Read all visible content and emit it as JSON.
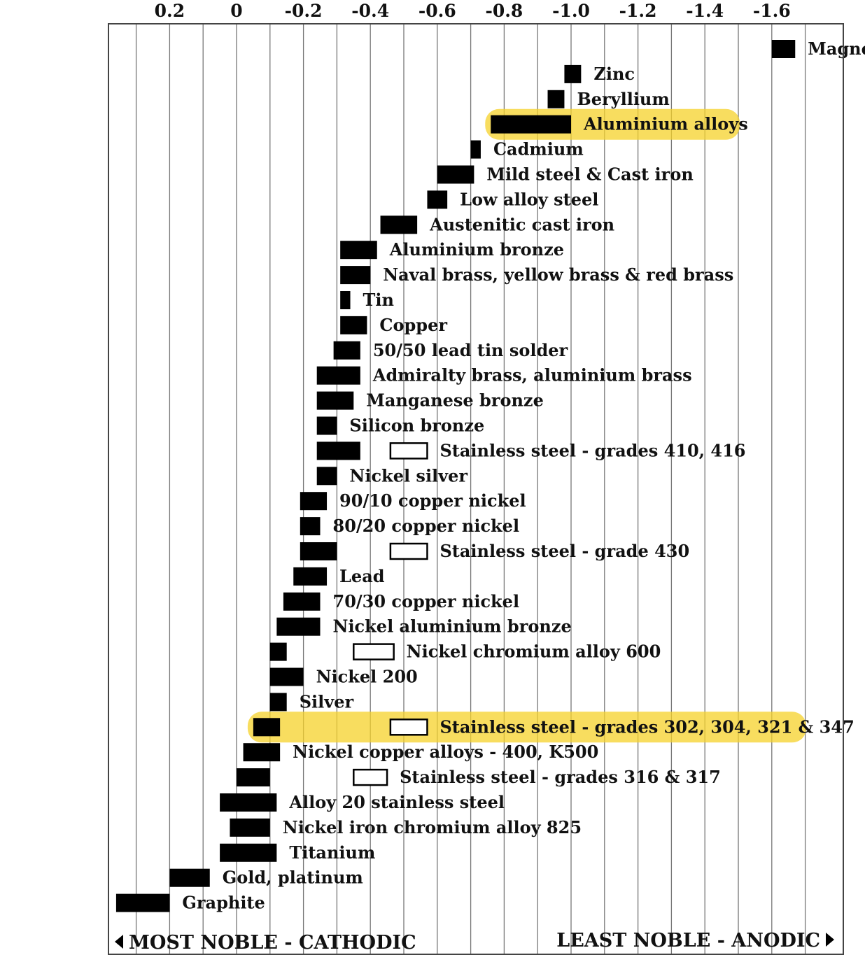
{
  "chart_data": {
    "type": "bar",
    "x_ticks": [
      "0.2",
      "0",
      "-0.2",
      "-0.4",
      "-0.6",
      "-0.8",
      "-1.0",
      "-1.2",
      "-1.4",
      "-1.6"
    ],
    "x_tick_values": [
      0.2,
      0,
      -0.2,
      -0.4,
      -0.6,
      -0.8,
      -1.0,
      -1.2,
      -1.4,
      -1.6
    ],
    "xlim": [
      0.4,
      -1.8
    ],
    "grid": true,
    "footer_left": "MOST NOBLE - CATHODIC",
    "footer_right": "LEAST NOBLE - ANODIC",
    "highlight_color": "#f6d22a",
    "series": [
      {
        "label": "Magnesium",
        "range": [
          -1.6,
          -1.67
        ]
      },
      {
        "label": "Zinc",
        "range": [
          -0.98,
          -1.03
        ]
      },
      {
        "label": "Beryllium",
        "range": [
          -0.93,
          -0.98
        ]
      },
      {
        "label": "Aluminium alloys",
        "range": [
          -0.76,
          -1.0
        ],
        "highlight": true
      },
      {
        "label": "Cadmium",
        "range": [
          -0.7,
          -0.73
        ]
      },
      {
        "label": "Mild steel & Cast iron",
        "range": [
          -0.6,
          -0.71
        ]
      },
      {
        "label": "Low alloy steel",
        "range": [
          -0.57,
          -0.63
        ]
      },
      {
        "label": "Austenitic cast iron",
        "range": [
          -0.43,
          -0.54
        ]
      },
      {
        "label": "Aluminium bronze",
        "range": [
          -0.31,
          -0.42
        ]
      },
      {
        "label": "Naval brass, yellow brass & red brass",
        "range": [
          -0.31,
          -0.4
        ]
      },
      {
        "label": "Tin",
        "range": [
          -0.31,
          -0.34
        ]
      },
      {
        "label": "Copper",
        "range": [
          -0.31,
          -0.39
        ]
      },
      {
        "label": "50/50 lead tin solder",
        "range": [
          -0.29,
          -0.37
        ]
      },
      {
        "label": "Admiralty brass, aluminium brass",
        "range": [
          -0.24,
          -0.37
        ]
      },
      {
        "label": "Manganese bronze",
        "range": [
          -0.24,
          -0.35
        ]
      },
      {
        "label": "Silicon bronze",
        "range": [
          -0.24,
          -0.3
        ]
      },
      {
        "label": "Stainless steel   - grades 410, 416",
        "range": [
          -0.24,
          -0.37
        ],
        "passive_range": [
          -0.46,
          -0.57
        ]
      },
      {
        "label": "Nickel silver",
        "range": [
          -0.24,
          -0.3
        ]
      },
      {
        "label": "90/10 copper nickel",
        "range": [
          -0.19,
          -0.27
        ]
      },
      {
        "label": "80/20 copper nickel",
        "range": [
          -0.19,
          -0.25
        ]
      },
      {
        "label": "Stainless steel   - grade 430",
        "range": [
          -0.19,
          -0.3
        ],
        "passive_range": [
          -0.46,
          -0.57
        ]
      },
      {
        "label": "Lead",
        "range": [
          -0.17,
          -0.27
        ]
      },
      {
        "label": "70/30 copper nickel",
        "range": [
          -0.14,
          -0.25
        ]
      },
      {
        "label": "Nickel aluminium bronze",
        "range": [
          -0.12,
          -0.25
        ]
      },
      {
        "label": "Nickel chromium alloy 600",
        "range": [
          -0.1,
          -0.15
        ],
        "passive_range": [
          -0.35,
          -0.47
        ]
      },
      {
        "label": "Nickel 200",
        "range": [
          -0.1,
          -0.2
        ]
      },
      {
        "label": "Silver",
        "range": [
          -0.1,
          -0.15
        ]
      },
      {
        "label": "Stainless steel - grades 302, 304, 321 & 347",
        "range": [
          -0.05,
          -0.13
        ],
        "passive_range": [
          -0.46,
          -0.57
        ],
        "highlight": true
      },
      {
        "label": "Nickel copper  alloys - 400, K500",
        "range": [
          -0.02,
          -0.13
        ]
      },
      {
        "label": "Stainless steel -  grades  316 & 317",
        "range": [
          0,
          -0.1
        ],
        "passive_range": [
          -0.35,
          -0.45
        ]
      },
      {
        "label": "Alloy 20 stainless steel",
        "range": [
          0.05,
          -0.12
        ]
      },
      {
        "label": "Nickel iron chromium alloy  825",
        "range": [
          0.02,
          -0.1
        ]
      },
      {
        "label": "Titanium",
        "range": [
          0.05,
          -0.12
        ]
      },
      {
        "label": "Gold, platinum",
        "range": [
          0.2,
          0.08
        ]
      },
      {
        "label": "Graphite",
        "range": [
          0.36,
          0.2
        ]
      }
    ]
  }
}
